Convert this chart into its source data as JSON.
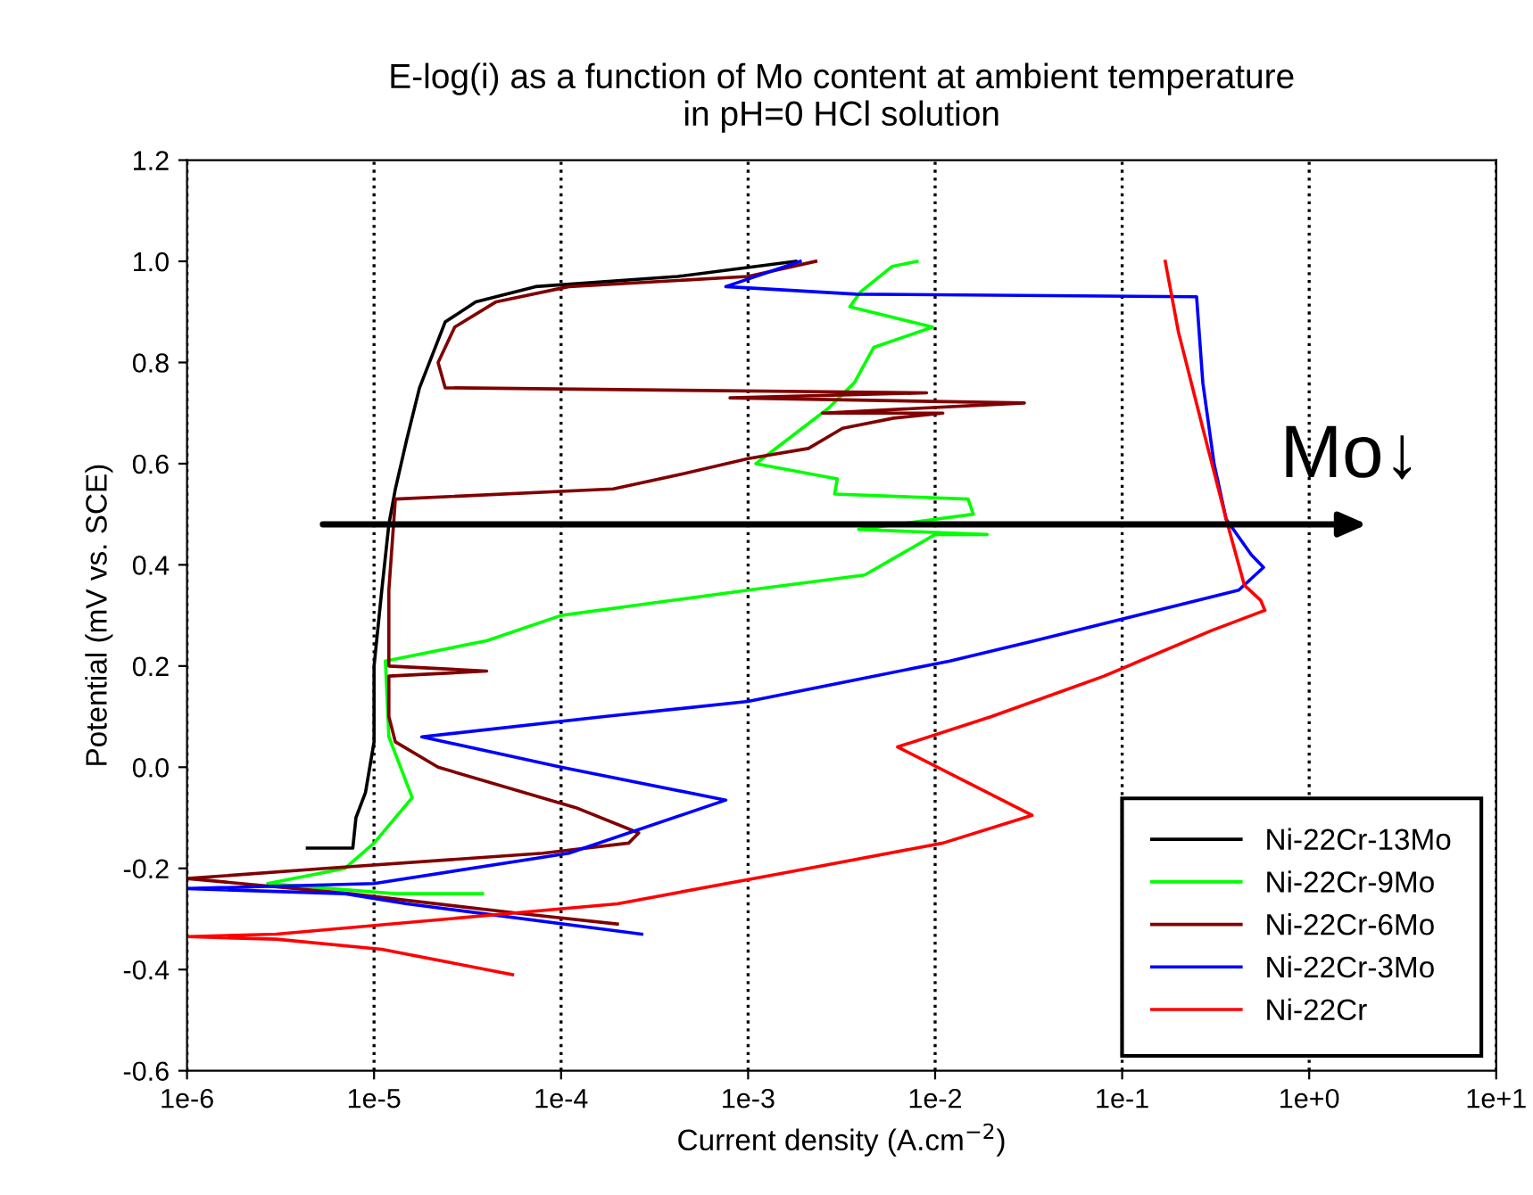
{
  "chart_data": {
    "type": "line",
    "title": "E-log(i) as a function of Mo content at ambient temperature\nin pH=0 HCl solution",
    "xlabel": "Current density (A.cm$^{−2}$)",
    "ylabel": "Potential (mV vs. SCE)",
    "log": "x",
    "grid": "x",
    "legend": "bottom right",
    "marker": "none",
    "line_style": "solid",
    "xlim": [
      1e-06,
      10
    ],
    "ylim": [
      -0.6,
      1.2
    ],
    "xticks": [
      {
        "value": 1e-06,
        "label": "1e-6"
      },
      {
        "value": 1e-05,
        "label": "1e-5"
      },
      {
        "value": 0.0001,
        "label": "1e-4"
      },
      {
        "value": 0.001,
        "label": "1e-3"
      },
      {
        "value": 0.01,
        "label": "1e-2"
      },
      {
        "value": 0.1,
        "label": "1e-1"
      },
      {
        "value": 1,
        "label": "1e+0"
      },
      {
        "value": 10,
        "label": "1e+1"
      }
    ],
    "yticks": [
      -0.6,
      -0.4,
      -0.2,
      {
        "value": 0,
        "label": "0.0"
      },
      0.2,
      0.4,
      0.6,
      0.8,
      {
        "value": 1.0,
        "label": "1.0"
      },
      1.2
    ],
    "annotations": [
      "Mo↓"
    ],
    "series": [
      {
        "name": "Ni-22Cr-13Mo",
        "color": "#000000",
        "x": [
          4.4e-06,
          7.7e-06,
          8e-06,
          9e-06,
          1e-05,
          1e-05,
          1.1e-05,
          1.2e-05,
          1.3e-05,
          1.5e-05,
          1.75e-05,
          2.4e-05,
          3.5e-05,
          7.3e-05,
          0.00042,
          0.0018
        ],
        "values": [
          -0.16,
          -0.16,
          -0.1,
          -0.05,
          0.05,
          0.2,
          0.35,
          0.48,
          0.55,
          0.65,
          0.75,
          0.88,
          0.92,
          0.95,
          0.97,
          1.0
        ]
      },
      {
        "name": "Ni-22Cr-9Mo",
        "color": "#00ff00",
        "x": [
          3.8e-05,
          1.3e-05,
          2.7e-06,
          7e-06,
          1e-05,
          1.6e-05,
          1.2e-05,
          1.15e-05,
          4e-05,
          0.0001,
          0.001,
          0.0042,
          0.01,
          0.019,
          0.0039,
          0.016,
          0.015,
          0.0029,
          0.003,
          0.0011,
          0.0027,
          0.0037,
          0.0047,
          0.0097,
          0.0035,
          0.004,
          0.0059,
          0.008
        ],
        "values": [
          -0.25,
          -0.25,
          -0.23,
          -0.2,
          -0.15,
          -0.06,
          0.06,
          0.21,
          0.25,
          0.3,
          0.35,
          0.38,
          0.46,
          0.46,
          0.47,
          0.5,
          0.53,
          0.54,
          0.57,
          0.6,
          0.71,
          0.76,
          0.83,
          0.87,
          0.91,
          0.94,
          0.99,
          1.0
        ]
      },
      {
        "name": "Ni-22Cr-6Mo",
        "color": "#800000",
        "x": [
          0.0002,
          6.3e-05,
          7.4e-06,
          1e-06,
          5.5e-06,
          8e-05,
          0.00023,
          0.00026,
          0.00012,
          2.2e-05,
          1.3e-05,
          1.2e-05,
          1.2e-05,
          4e-05,
          1.2e-05,
          1.2e-05,
          1.3e-05,
          0.00019,
          0.00045,
          0.001,
          0.0021,
          0.0032,
          0.006,
          0.011,
          0.0025,
          0.03,
          0.0008,
          0.009,
          2.4e-05,
          2.2e-05,
          2.7e-05,
          4.5e-05,
          0.00011,
          0.001,
          0.0023
        ],
        "values": [
          -0.31,
          -0.29,
          -0.25,
          -0.22,
          -0.2,
          -0.17,
          -0.15,
          -0.13,
          -0.08,
          0.0,
          0.05,
          0.1,
          0.18,
          0.19,
          0.2,
          0.35,
          0.53,
          0.55,
          0.58,
          0.61,
          0.63,
          0.67,
          0.69,
          0.7,
          0.7,
          0.72,
          0.73,
          0.74,
          0.75,
          0.8,
          0.87,
          0.92,
          0.95,
          0.97,
          1.0
        ]
      },
      {
        "name": "Ni-22Cr-3Mo",
        "color": "#0000ff",
        "x": [
          0.00027,
          1.5e-05,
          7e-06,
          1e-06,
          1e-05,
          0.00011,
          0.00076,
          0.0001,
          1.8e-05,
          0.00017,
          0.001,
          0.012,
          0.034,
          0.42,
          0.57,
          0.49,
          0.36,
          0.31,
          0.27,
          0.25,
          0.0038,
          0.00076,
          0.0019
        ],
        "values": [
          -0.33,
          -0.27,
          -0.25,
          -0.24,
          -0.23,
          -0.17,
          -0.065,
          0.0,
          0.06,
          0.1,
          0.13,
          0.21,
          0.25,
          0.35,
          0.395,
          0.42,
          0.49,
          0.6,
          0.76,
          0.93,
          0.935,
          0.95,
          1.0
        ]
      },
      {
        "name": "Ni-22Cr",
        "color": "#ff0000",
        "x": [
          5.5e-05,
          1.1e-05,
          3e-06,
          1e-06,
          3e-06,
          5e-05,
          0.0002,
          0.0015,
          0.011,
          0.033,
          0.0063,
          0.02,
          0.08,
          0.3,
          0.58,
          0.55,
          0.45,
          0.36,
          0.27,
          0.2,
          0.17
        ],
        "values": [
          -0.41,
          -0.36,
          -0.34,
          -0.335,
          -0.33,
          -0.29,
          -0.27,
          -0.21,
          -0.15,
          -0.095,
          0.04,
          0.1,
          0.18,
          0.27,
          0.31,
          0.33,
          0.36,
          0.49,
          0.67,
          0.86,
          1.0
        ]
      }
    ]
  }
}
